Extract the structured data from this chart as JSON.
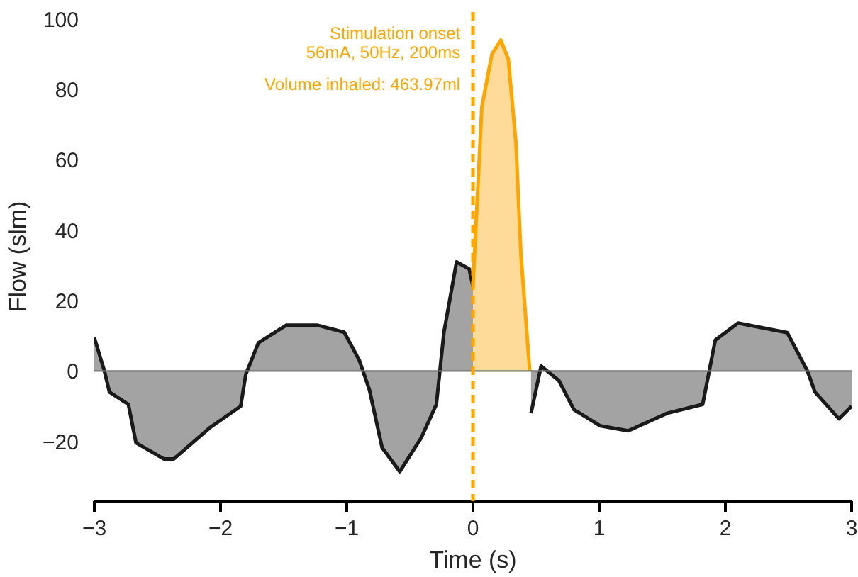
{
  "chart_data": {
    "type": "area",
    "xlabel": "Time (s)",
    "ylabel": "Flow (slm)",
    "xlim": [
      -3,
      3
    ],
    "xticks": [
      {
        "value": -3,
        "label": "−3"
      },
      {
        "value": -2,
        "label": "−2"
      },
      {
        "value": -1,
        "label": "−1"
      },
      0,
      1,
      2,
      3
    ],
    "ylim": [
      -37,
      102
    ],
    "yticks": [
      {
        "value": -20,
        "label": "−20"
      },
      0,
      20,
      40,
      60,
      80,
      100
    ],
    "grid": false,
    "series": [
      {
        "color": "#1a1a1a",
        "x": [
          -3.0,
          -2.92,
          -2.88,
          -2.73,
          -2.67,
          -2.45,
          -2.37,
          -2.08,
          -1.84,
          -1.8,
          -1.7,
          -1.48,
          -1.23,
          -1.02,
          -0.9,
          -0.82,
          -0.72,
          -0.58,
          -0.41,
          -0.29,
          -0.23,
          -0.13,
          -0.03,
          0.0,
          0.2,
          0.46,
          0.54,
          0.68,
          0.8,
          1.01,
          1.23,
          1.54,
          1.82,
          1.92,
          2.1,
          2.49,
          2.65,
          2.71,
          2.9,
          3.0
        ],
        "values": [
          9.5,
          0,
          -6,
          -9.5,
          -20.4,
          -25,
          -25,
          -16,
          -10,
          -1,
          8,
          13,
          13,
          11,
          3,
          -5.4,
          -21.8,
          -28.6,
          -19,
          -9.5,
          11,
          31,
          29,
          24,
          null,
          -12,
          1.4,
          -2.7,
          -11,
          -15.6,
          -17,
          -12,
          -9.5,
          8.8,
          13.6,
          10.9,
          0,
          -6,
          -13.6,
          -10
        ]
      },
      {
        "color": "#ffa500",
        "x": [
          0.0,
          0.07,
          0.15,
          0.22,
          0.28,
          0.34,
          0.38,
          0.45
        ],
        "values": [
          24,
          75,
          90,
          94,
          88.6,
          65,
          33,
          0
        ]
      }
    ],
    "ref_lines": [
      {
        "axis": "x",
        "value": 0,
        "color": "#ffa500",
        "line_style": "dashed"
      }
    ],
    "annotations": [
      "Stimulation onset\n56mA, 50Hz, 200ms",
      "Volume inhaled: 463.97ml"
    ]
  }
}
